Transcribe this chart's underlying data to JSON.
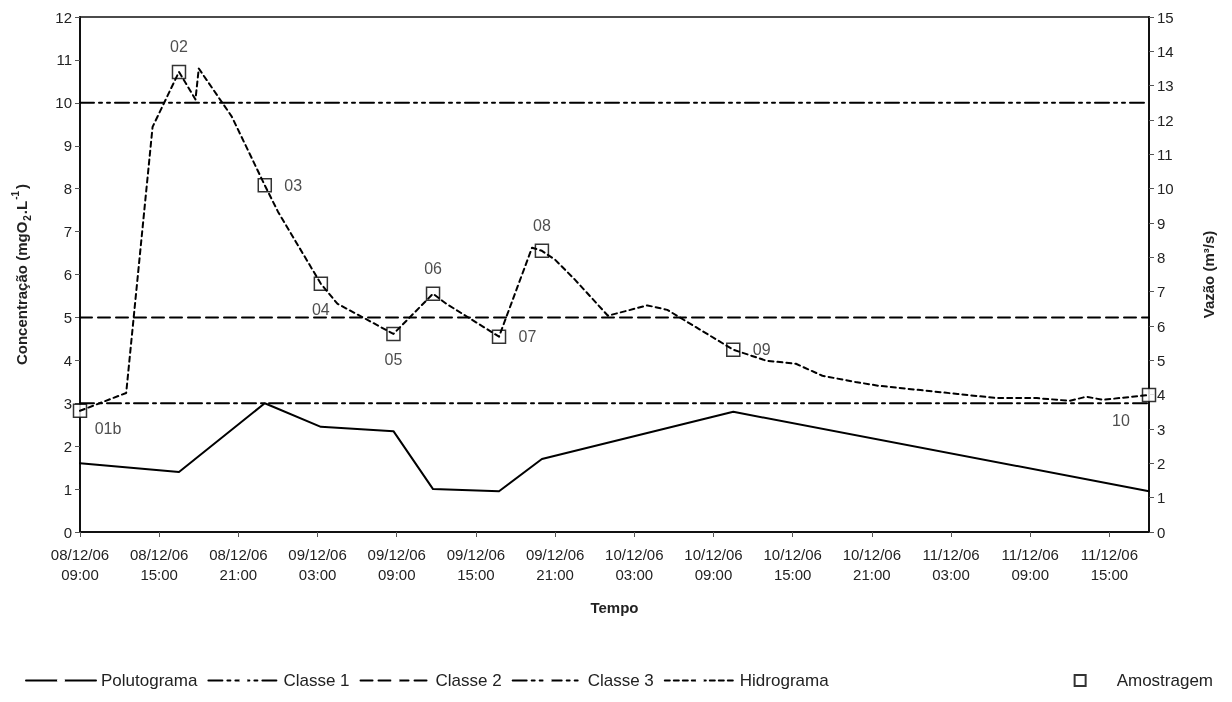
{
  "chart_data": {
    "type": "line",
    "xlabel": "Tempo",
    "ylabel": "Concentração (mgO$_{2}$.L$^{-1}$)",
    "y2label": "Vazão (m³/s)",
    "xlim": [
      "--12-08T09:00",
      "--12-11T18:00"
    ],
    "xticks": [
      {
        "value": "--12-08T09:00",
        "label": "08/12/06\n09:00"
      },
      {
        "value": "--12-08T15:00",
        "label": "08/12/06\n15:00"
      },
      {
        "value": "--12-08T21:00",
        "label": "08/12/06\n21:00"
      },
      {
        "value": "--12-09T03:00",
        "label": "09/12/06\n03:00"
      },
      {
        "value": "--12-09T09:00",
        "label": "09/12/06\n09:00"
      },
      {
        "value": "--12-09T15:00",
        "label": "09/12/06\n15:00"
      },
      {
        "value": "--12-09T21:00",
        "label": "09/12/06\n21:00"
      },
      {
        "value": "--12-10T03:00",
        "label": "10/12/06\n03:00"
      },
      {
        "value": "--12-10T09:00",
        "label": "10/12/06\n09:00"
      },
      {
        "value": "--12-10T15:00",
        "label": "10/12/06\n15:00"
      },
      {
        "value": "--12-10T21:00",
        "label": "10/12/06\n21:00"
      },
      {
        "value": "--12-11T03:00",
        "label": "11/12/06\n03:00"
      },
      {
        "value": "--12-11T09:00",
        "label": "11/12/06\n09:00"
      },
      {
        "value": "--12-11T15:00",
        "label": "11/12/06\n15:00"
      }
    ],
    "ylim": [
      0,
      12
    ],
    "yticks": [
      0,
      1,
      2,
      3,
      4,
      5,
      6,
      7,
      8,
      9,
      10,
      11,
      12
    ],
    "y2lim": [
      0,
      15
    ],
    "y2ticks": [
      0,
      1,
      2,
      3,
      4,
      5,
      6,
      7,
      8,
      9,
      10,
      11,
      12,
      13,
      14,
      15
    ],
    "grid": false,
    "legend": "bottom",
    "annotations": [
      {
        "text": "01b",
        "x": "--12-08T09:00",
        "y": 2.82
      },
      {
        "text": "02",
        "x": "--12-08T16:30",
        "y": 10.72
      },
      {
        "text": "03",
        "x": "--12-08T23:00",
        "y": 8.08
      },
      {
        "text": "04",
        "x": "--12-09T03:15",
        "y": 5.78
      },
      {
        "text": "05",
        "x": "--12-09T08:45",
        "y": 4.62
      },
      {
        "text": "06",
        "x": "--12-09T11:45",
        "y": 5.55
      },
      {
        "text": "07",
        "x": "--12-09T16:45",
        "y": 4.55
      },
      {
        "text": "08",
        "x": "--12-09T20:00",
        "y": 6.55
      },
      {
        "text": "09",
        "x": "--12-10T10:30",
        "y": 4.25
      },
      {
        "text": "10",
        "x": "--12-11T18:00",
        "y": 3.19
      }
    ],
    "series": [
      {
        "name": "Polutograma",
        "color": "#000000",
        "line_style": "solid",
        "marker": "none",
        "x": [
          "--12-08T09:00",
          "--12-08T16:30",
          "--12-08T23:00",
          "--12-09T03:15",
          "--12-09T08:45",
          "--12-09T11:45",
          "--12-09T16:45",
          "--12-09T20:00",
          "--12-10T10:30",
          "--12-11T18:00"
        ],
        "values": [
          1.6,
          1.4,
          3.0,
          2.45,
          2.35,
          1.0,
          0.95,
          1.7,
          2.8,
          0.95
        ]
      },
      {
        "name": "Classe 1",
        "color": "#000000",
        "line_style": "dashdot",
        "marker": "none",
        "x": [
          "--12-08T09:00",
          "--12-11T18:00"
        ],
        "values": [
          3,
          3
        ]
      },
      {
        "name": "Classe 2",
        "color": "#000000",
        "line_style": "dashed",
        "marker": "none",
        "x": [
          "--12-08T09:00",
          "--12-11T18:00"
        ],
        "values": [
          5,
          5
        ]
      },
      {
        "name": "Classe 3",
        "color": "#000000",
        "line_style": "dashdotdot",
        "marker": "none",
        "x": [
          "--12-08T09:00",
          "--12-11T18:00"
        ],
        "values": [
          10,
          10
        ]
      },
      {
        "name": "Hidrograma",
        "axis": "y2",
        "color": "#000000",
        "line_style": "dotted",
        "marker": "none",
        "x": [
          "--12-08T09:00",
          "--12-08T12:30",
          "--12-08T14:30",
          "--12-08T16:30",
          "--12-08T17:45",
          "--12-08T18:00",
          "--12-08T20:30",
          "--12-08T23:00",
          "--12-09T00:00",
          "--12-09T03:15",
          "--12-09T04:30",
          "--12-09T08:45",
          "--12-09T11:45",
          "--12-09T12:45",
          "--12-09T16:45",
          "--12-09T19:15",
          "--12-09T20:00",
          "--12-09T21:00",
          "--12-09T22:30",
          "--12-10T01:00",
          "--12-10T03:00",
          "--12-10T04:00",
          "--12-10T05:30",
          "--12-10T10:30",
          "--12-10T13:00",
          "--12-10T15:15",
          "--12-10T17:15",
          "--12-10T19:45",
          "--12-10T21:30",
          "--12-11T00:30",
          "--12-11T03:30",
          "--12-11T06:30",
          "--12-11T09:30",
          "--12-11T12:00",
          "--12-11T13:15",
          "--12-11T14:30",
          "--12-11T18:00"
        ],
        "values": [
          3.53,
          4.05,
          11.8,
          13.4,
          12.6,
          13.5,
          12.1,
          10.1,
          9.33,
          7.23,
          6.65,
          5.77,
          6.94,
          6.65,
          5.69,
          8.28,
          8.19,
          7.93,
          7.35,
          6.3,
          6.5,
          6.6,
          6.47,
          5.31,
          4.99,
          4.9,
          4.55,
          4.37,
          4.26,
          4.14,
          4.02,
          3.9,
          3.9,
          3.82,
          3.94,
          3.85,
          3.99
        ]
      },
      {
        "name": "Amostragem",
        "type": "scatter",
        "axis": "y2",
        "color": "#000000",
        "marker": "square",
        "x": [
          "--12-08T09:00",
          "--12-08T16:30",
          "--12-08T23:00",
          "--12-09T03:15",
          "--12-09T08:45",
          "--12-09T11:45",
          "--12-09T16:45",
          "--12-09T20:00",
          "--12-10T10:30",
          "--12-11T18:00"
        ],
        "values": [
          3.53,
          13.4,
          10.1,
          7.23,
          5.77,
          6.94,
          5.69,
          8.19,
          5.31,
          3.99
        ]
      }
    ]
  }
}
